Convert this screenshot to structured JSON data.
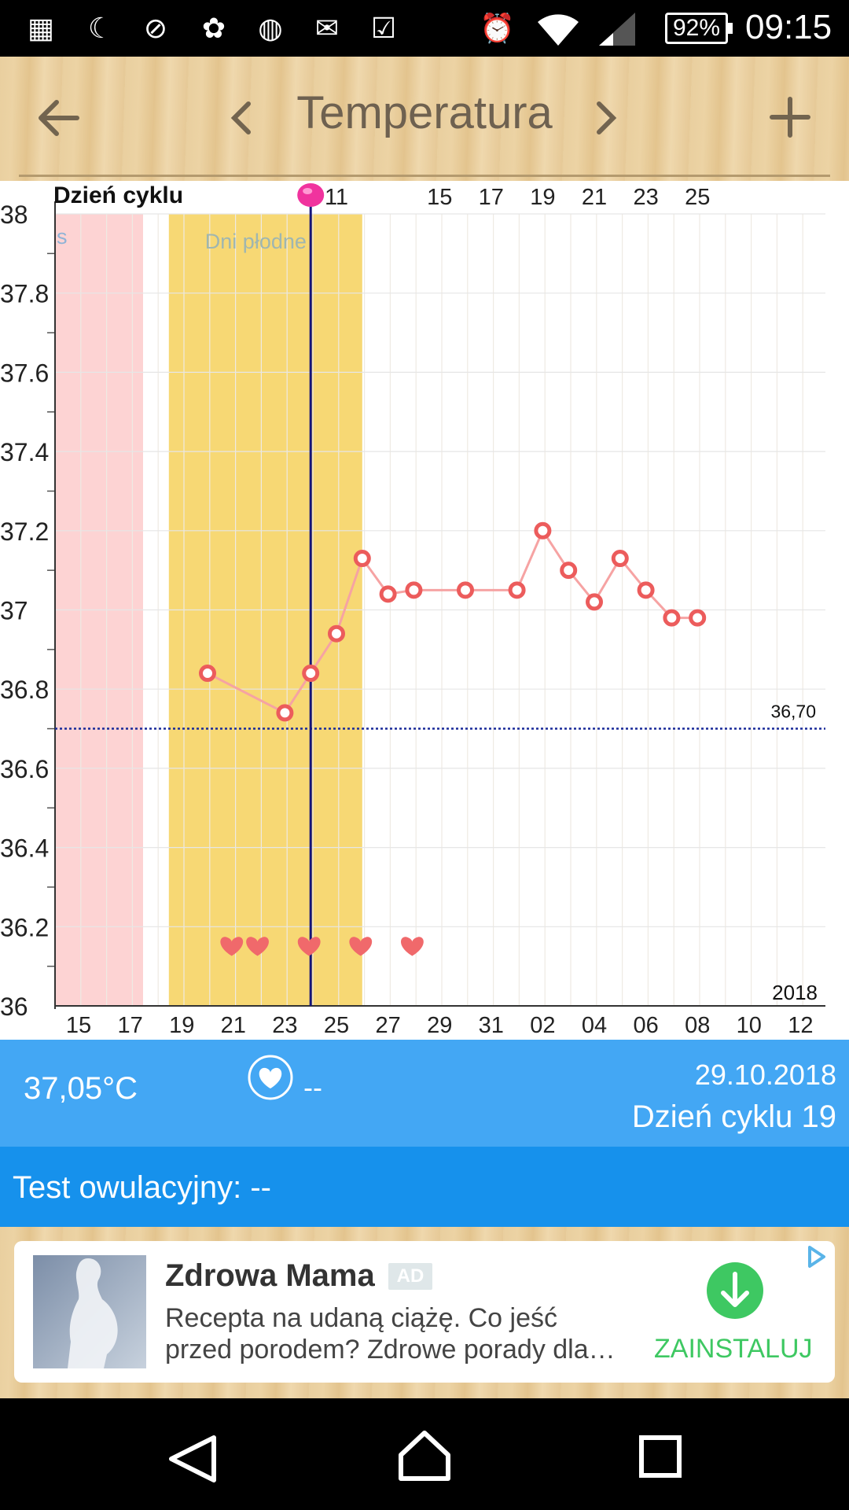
{
  "status_bar": {
    "battery": "92%",
    "time": "09:15"
  },
  "toolbar": {
    "title": "Temperatura"
  },
  "chart_data": {
    "type": "line",
    "top_axis_label": "Dzień cyklu",
    "top_ticks": [
      "11",
      "15",
      "17",
      "19",
      "21",
      "23",
      "25"
    ],
    "x_ticks": [
      "15",
      "17",
      "19",
      "21",
      "23",
      "25",
      "27",
      "29",
      "31",
      "02",
      "04",
      "06",
      "08",
      "10",
      "12"
    ],
    "y_ticks": [
      "38",
      "37.8",
      "37.6",
      "37.4",
      "37.2",
      "37",
      "36.8",
      "36.6",
      "36.4",
      "36.2",
      "36"
    ],
    "ylim": [
      36,
      38
    ],
    "year_label": "2018",
    "fertile_label": "Dni płodne",
    "period_label": "s",
    "coverline_value": 36.7,
    "coverline_label": "36,70",
    "series": [
      {
        "values": [
          {
            "x": "2018-10-19",
            "y": 36.84
          },
          {
            "x": "2018-10-22",
            "y": 36.74
          },
          {
            "x": "2018-10-23",
            "y": 36.84
          },
          {
            "x": "2018-10-24",
            "y": 36.94
          },
          {
            "x": "2018-10-25",
            "y": 37.13
          },
          {
            "x": "2018-10-26",
            "y": 37.04
          },
          {
            "x": "2018-10-27",
            "y": 37.05
          },
          {
            "x": "2018-10-29",
            "y": 37.05
          },
          {
            "x": "2018-10-31",
            "y": 37.05
          },
          {
            "x": "2018-11-01",
            "y": 37.2
          },
          {
            "x": "2018-11-02",
            "y": 37.1
          },
          {
            "x": "2018-11-03",
            "y": 37.02
          },
          {
            "x": "2018-11-04",
            "y": 37.13
          },
          {
            "x": "2018-11-05",
            "y": 37.05
          },
          {
            "x": "2018-11-06",
            "y": 36.98
          },
          {
            "x": "2018-11-07",
            "y": 36.98
          }
        ]
      }
    ],
    "heart_dates": [
      "2018-10-20",
      "2018-10-21",
      "2018-10-23",
      "2018-10-25",
      "2018-10-27"
    ],
    "ovulation_date": "2018-10-23",
    "period_range": [
      "2018-10-14",
      "2018-10-16"
    ],
    "fertile_range": [
      "2018-10-18",
      "2018-10-25"
    ],
    "colors": {
      "line": "#f6a3a3",
      "marker": "#ec5c5c",
      "period": "#fdd3d3",
      "fertile": "#f7d874",
      "ovulation": "#15157a",
      "coverline": "#1a2a9a"
    }
  },
  "info": {
    "temperature": "37,05°C",
    "heart_status": "--",
    "date": "29.10.2018",
    "cycle_day": "Dzień cyklu 19"
  },
  "ovulation_test": "Test owulacyjny: --",
  "ad": {
    "title": "Zdrowa Mama",
    "badge": "AD",
    "text": "Recepta na udaną ciążę. Co jeść przed porodem? Zdrowe porady dla…",
    "button": "ZAINSTALUJ"
  }
}
